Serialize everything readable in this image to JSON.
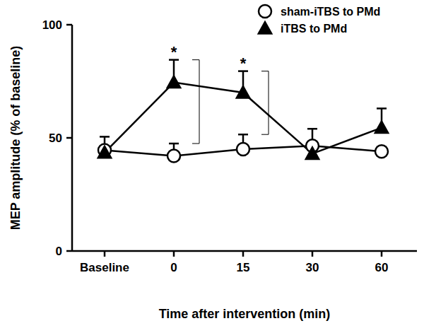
{
  "chart_data": {
    "type": "line",
    "x_label": "Time after intervention (min)",
    "y_label": "MEP amplitude (% of baseline)",
    "categories": [
      "Baseline",
      "0",
      "15",
      "30",
      "60"
    ],
    "series": [
      {
        "name": "sham-iTBS to PMd",
        "color": "#000000",
        "marker": "open-circle",
        "line_style": "solid",
        "values": [
          44.5,
          42,
          45,
          46.5,
          44
        ],
        "errors": [
          6,
          5.5,
          6.5,
          7.5,
          2
        ]
      },
      {
        "name": "iTBS to PMd",
        "color": "#000000",
        "marker": "triangle",
        "line_style": "solid",
        "values": [
          43.5,
          74.5,
          70,
          43,
          54.5
        ],
        "errors": [
          2,
          10,
          9.5,
          2,
          8.5
        ]
      }
    ],
    "ylim": [
      0,
      100
    ],
    "yticks": [
      0,
      50,
      100
    ],
    "grid": false,
    "legend": "top-right",
    "annotations": [
      {
        "text": "*",
        "x": "0"
      },
      {
        "text": "*",
        "x": "15"
      }
    ]
  }
}
